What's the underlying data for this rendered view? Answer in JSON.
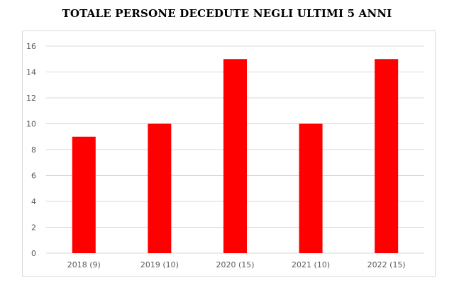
{
  "chart_data": {
    "type": "bar",
    "title": "TOTALE PERSONE DECEDUTE NEGLI ULTIMI 5 ANNI",
    "categories": [
      "2018 (9)",
      "2019 (10)",
      "2020 (15)",
      "2021 (10)",
      "2022 (15)"
    ],
    "values": [
      9,
      10,
      15,
      10,
      15
    ],
    "xlabel": "",
    "ylabel": "",
    "ylim": [
      0,
      16
    ],
    "yticks": [
      0,
      2,
      4,
      6,
      8,
      10,
      12,
      14,
      16
    ],
    "grid": true,
    "legend": "none",
    "bar_color": "#ff0000",
    "grid_color": "#d9d9d9"
  }
}
